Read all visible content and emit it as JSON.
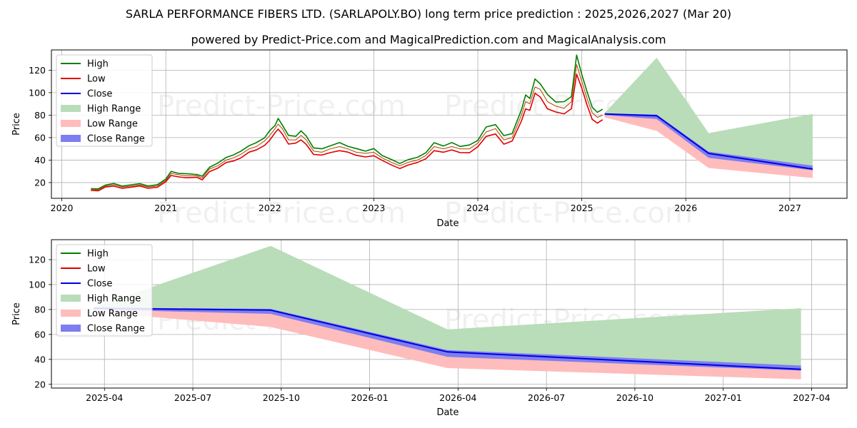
{
  "title": "SARLA PERFORMANCE FIBERS LTD. (SARLAPOLY.BO) long term price prediction : 2025,2026,2027 (Mar 20)",
  "subtitle": "powered by Predict-Price.com and MagicalPrediction.com and MagicalAnalysis.com",
  "watermark": "Predict-Price.com",
  "colors": {
    "high": "#008000",
    "low": "#e00000",
    "close": "#0000e0",
    "high_range": "#b9dcb9",
    "low_range": "#ffbcbc",
    "close_range": "#7e7ef0"
  },
  "legend": [
    "High",
    "Low",
    "Close",
    "High Range",
    "Low Range",
    "Close Range"
  ],
  "chart_data": [
    {
      "type": "line",
      "xlabel": "Date",
      "ylabel": "Price",
      "xlim": [
        2019.9,
        2027.55
      ],
      "ylim": [
        6,
        138
      ],
      "xticks": [
        2020,
        2021,
        2022,
        2023,
        2024,
        2025,
        2026,
        2027
      ],
      "xtick_labels": [
        "2020",
        "2021",
        "2022",
        "2023",
        "2024",
        "2025",
        "2026",
        "2027"
      ],
      "yticks": [
        20,
        40,
        60,
        80,
        100,
        120
      ],
      "grid": true,
      "legend_position": "upper-left",
      "historical_close": [
        [
          2020.28,
          14
        ],
        [
          2020.35,
          13.5
        ],
        [
          2020.42,
          17
        ],
        [
          2020.5,
          18
        ],
        [
          2020.58,
          16
        ],
        [
          2020.67,
          17
        ],
        [
          2020.75,
          18
        ],
        [
          2020.83,
          16
        ],
        [
          2020.92,
          17
        ],
        [
          2021.0,
          22
        ],
        [
          2021.05,
          28
        ],
        [
          2021.12,
          27
        ],
        [
          2021.2,
          26
        ],
        [
          2021.3,
          26
        ],
        [
          2021.35,
          24
        ],
        [
          2021.42,
          32
        ],
        [
          2021.5,
          35
        ],
        [
          2021.58,
          40
        ],
        [
          2021.65,
          42
        ],
        [
          2021.72,
          45
        ],
        [
          2021.8,
          50
        ],
        [
          2021.87,
          52
        ],
        [
          2021.95,
          57
        ],
        [
          2022.0,
          62
        ],
        [
          2022.05,
          68
        ],
        [
          2022.08,
          72
        ],
        [
          2022.12,
          68
        ],
        [
          2022.18,
          58
        ],
        [
          2022.25,
          58
        ],
        [
          2022.3,
          62
        ],
        [
          2022.35,
          58
        ],
        [
          2022.42,
          48
        ],
        [
          2022.5,
          47
        ],
        [
          2022.58,
          50
        ],
        [
          2022.67,
          52
        ],
        [
          2022.75,
          50
        ],
        [
          2022.83,
          47
        ],
        [
          2022.92,
          46
        ],
        [
          2023.0,
          47
        ],
        [
          2023.08,
          42
        ],
        [
          2023.17,
          38
        ],
        [
          2023.25,
          35
        ],
        [
          2023.33,
          38
        ],
        [
          2023.42,
          40
        ],
        [
          2023.5,
          44
        ],
        [
          2023.58,
          52
        ],
        [
          2023.67,
          50
        ],
        [
          2023.75,
          52
        ],
        [
          2023.83,
          50
        ],
        [
          2023.92,
          50
        ],
        [
          2024.0,
          55
        ],
        [
          2024.08,
          65
        ],
        [
          2024.17,
          68
        ],
        [
          2024.25,
          58
        ],
        [
          2024.33,
          60
        ],
        [
          2024.42,
          80
        ],
        [
          2024.46,
          92
        ],
        [
          2024.5,
          90
        ],
        [
          2024.55,
          105
        ],
        [
          2024.6,
          103
        ],
        [
          2024.67,
          92
        ],
        [
          2024.75,
          88
        ],
        [
          2024.83,
          86
        ],
        [
          2024.9,
          92
        ],
        [
          2024.95,
          125
        ],
        [
          2025.0,
          110
        ],
        [
          2025.05,
          95
        ],
        [
          2025.1,
          82
        ],
        [
          2025.15,
          78
        ],
        [
          2025.2,
          80
        ]
      ],
      "forecast_close": [
        [
          2025.22,
          81
        ],
        [
          2025.72,
          79.5
        ],
        [
          2026.22,
          46
        ],
        [
          2027.22,
          32
        ]
      ],
      "high_range": {
        "x": [
          2025.22,
          2025.72,
          2026.22,
          2027.22
        ],
        "upper": [
          82,
          131,
          64,
          81
        ],
        "lower": [
          81,
          79.5,
          46,
          32
        ]
      },
      "low_range": {
        "x": [
          2025.22,
          2025.72,
          2026.22,
          2027.22
        ],
        "upper": [
          81,
          79.5,
          46,
          32
        ],
        "lower": [
          78,
          66,
          33,
          24
        ]
      },
      "close_range": {
        "x": [
          2025.22,
          2025.72,
          2026.22,
          2027.22
        ],
        "upper": [
          81.5,
          80.5,
          47.5,
          35
        ],
        "lower": [
          80,
          76.5,
          42,
          31
        ]
      }
    },
    {
      "type": "line",
      "xlabel": "Date",
      "ylabel": "Price",
      "xlim": [
        2025.1,
        2027.35
      ],
      "ylim": [
        17,
        136
      ],
      "xticks": [
        2025.25,
        2025.5,
        2025.75,
        2026.0,
        2026.25,
        2026.5,
        2026.75,
        2027.0,
        2027.25
      ],
      "xtick_labels": [
        "2025-04",
        "2025-07",
        "2025-10",
        "2026-01",
        "2026-04",
        "2026-07",
        "2026-10",
        "2027-01",
        "2027-04"
      ],
      "yticks": [
        20,
        40,
        60,
        80,
        100,
        120
      ],
      "grid": true,
      "legend_position": "upper-left",
      "forecast_close": [
        [
          2025.22,
          81
        ],
        [
          2025.72,
          79.5
        ],
        [
          2026.22,
          46
        ],
        [
          2027.22,
          32
        ]
      ],
      "high_range": {
        "x": [
          2025.22,
          2025.72,
          2026.22,
          2027.22
        ],
        "upper": [
          82,
          131,
          64,
          81
        ],
        "lower": [
          81,
          79.5,
          46,
          32
        ]
      },
      "low_range": {
        "x": [
          2025.22,
          2025.72,
          2026.22,
          2027.22
        ],
        "upper": [
          81,
          79.5,
          46,
          32
        ],
        "lower": [
          78,
          66,
          33,
          24
        ]
      },
      "close_range": {
        "x": [
          2025.22,
          2025.72,
          2026.22,
          2027.22
        ],
        "upper": [
          81.5,
          80.5,
          47.5,
          35
        ],
        "lower": [
          80,
          76.5,
          42,
          31
        ]
      }
    }
  ]
}
